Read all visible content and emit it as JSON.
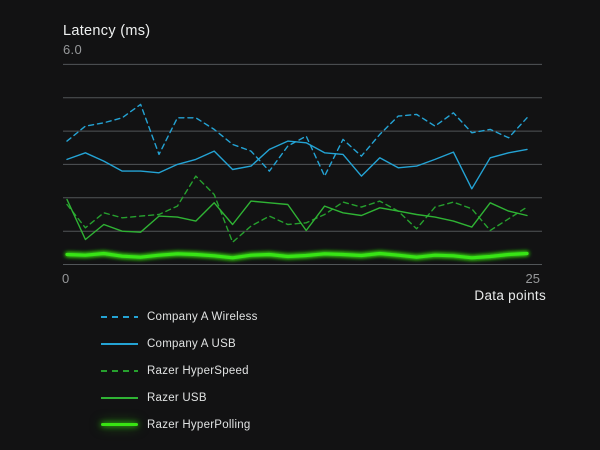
{
  "header": {
    "title": "Latency (ms)",
    "y_max_label": "6.0"
  },
  "axis": {
    "x_min_label": "0",
    "x_max_label": "25",
    "x_axis_title": "Data points"
  },
  "colors": {
    "background": "#121213",
    "gridline": "#5d6165",
    "dim_label": "#96989a",
    "bright_label": "#e9ebeb",
    "company_a_blue": "#24a3d4",
    "razer_hyperspeed_green": "#26a02e",
    "razer_usb_green": "#2fb334",
    "razer_hyperpolling_green": "#38e412"
  },
  "chart_data": {
    "type": "line",
    "title": "Latency (ms)",
    "xlabel": "Data points",
    "ylabel": "Latency (ms)",
    "xlim": [
      0,
      25
    ],
    "ylim": [
      0,
      6.0
    ],
    "y_gridline_step": 1.0,
    "grid": "horizontal",
    "legend_position": "bottom-left",
    "x": [
      0,
      1,
      2,
      3,
      4,
      5,
      6,
      7,
      8,
      9,
      10,
      11,
      12,
      13,
      14,
      15,
      16,
      17,
      18,
      19,
      20,
      21,
      22,
      23,
      24,
      25
    ],
    "series": [
      {
        "name": "Company A Wireless",
        "style": "dashed",
        "color": "#24a3d4",
        "values": [
          3.7,
          4.15,
          4.25,
          4.4,
          4.8,
          3.3,
          4.4,
          4.4,
          4.05,
          3.6,
          3.4,
          2.8,
          3.55,
          3.85,
          2.65,
          3.75,
          3.25,
          3.9,
          4.45,
          4.5,
          4.15,
          4.55,
          3.95,
          4.05,
          3.8,
          4.4
        ]
      },
      {
        "name": "Company A USB",
        "style": "solid",
        "color": "#24a3d4",
        "values": [
          3.15,
          3.35,
          3.1,
          2.8,
          2.8,
          2.75,
          3.0,
          3.15,
          3.4,
          2.85,
          2.95,
          3.45,
          3.7,
          3.65,
          3.35,
          3.3,
          2.65,
          3.2,
          2.9,
          2.95,
          3.15,
          3.37,
          2.27,
          3.2,
          3.35,
          3.45
        ]
      },
      {
        "name": "Razer HyperSpeed",
        "style": "dashed",
        "color": "#26a02e",
        "values": [
          1.8,
          1.1,
          1.55,
          1.4,
          1.45,
          1.5,
          1.75,
          2.65,
          2.1,
          0.67,
          1.15,
          1.45,
          1.2,
          1.25,
          1.5,
          1.87,
          1.72,
          1.9,
          1.6,
          1.07,
          1.72,
          1.87,
          1.67,
          1.02,
          1.37,
          1.72
        ]
      },
      {
        "name": "Razer USB",
        "style": "solid",
        "color": "#2fb334",
        "values": [
          1.95,
          0.75,
          1.2,
          1.0,
          0.97,
          1.45,
          1.42,
          1.3,
          1.85,
          1.2,
          1.9,
          1.85,
          1.8,
          1.02,
          1.75,
          1.55,
          1.47,
          1.7,
          1.6,
          1.5,
          1.42,
          1.3,
          1.12,
          1.85,
          1.6,
          1.47
        ]
      },
      {
        "name": "Razer HyperPolling",
        "style": "thick-glow",
        "color": "#38e412",
        "values": [
          0.3,
          0.28,
          0.33,
          0.25,
          0.22,
          0.28,
          0.32,
          0.3,
          0.26,
          0.2,
          0.28,
          0.3,
          0.24,
          0.27,
          0.32,
          0.3,
          0.27,
          0.33,
          0.28,
          0.22,
          0.28,
          0.26,
          0.2,
          0.24,
          0.3,
          0.33
        ]
      }
    ]
  }
}
